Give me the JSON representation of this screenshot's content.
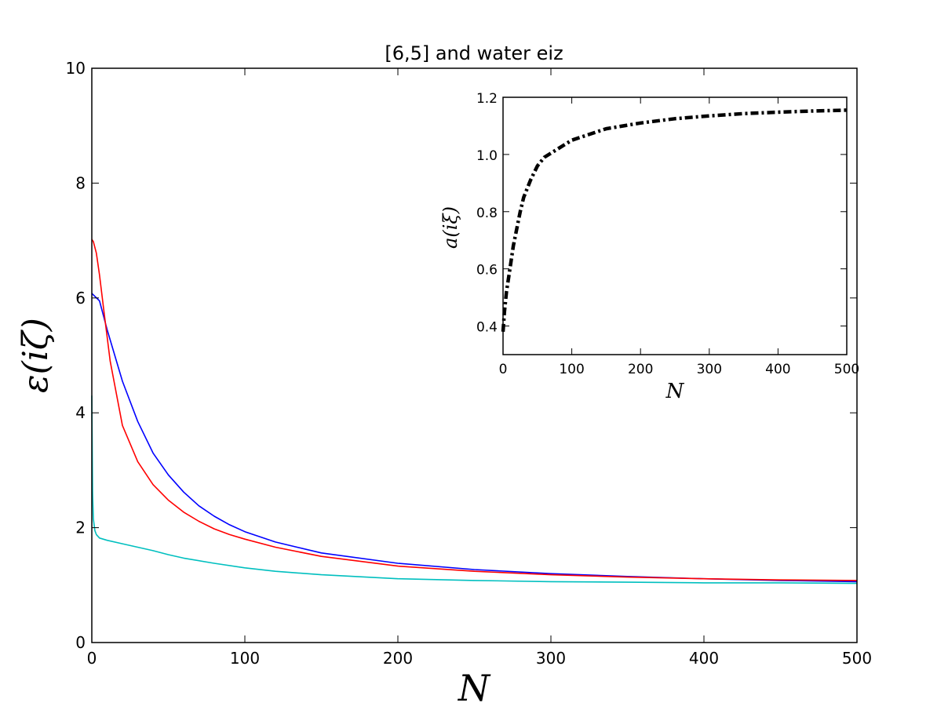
{
  "chart_data": [
    {
      "id": "main",
      "type": "line",
      "title": "[6,5] and water eiz",
      "xlabel": "N",
      "ylabel": "ε(iζ)",
      "xlim": [
        0,
        500
      ],
      "ylim": [
        0,
        10
      ],
      "xticks": [
        0,
        100,
        200,
        300,
        400,
        500
      ],
      "yticks": [
        0,
        2,
        4,
        6,
        8,
        10
      ],
      "grid": false,
      "series": [
        {
          "color": "#0000ff",
          "x": [
            0,
            5,
            10,
            20,
            30,
            40,
            50,
            60,
            70,
            80,
            90,
            100,
            120,
            150,
            200,
            250,
            300,
            350,
            400,
            450,
            500
          ],
          "y": [
            6.08,
            5.95,
            5.45,
            4.55,
            3.85,
            3.3,
            2.92,
            2.62,
            2.38,
            2.2,
            2.05,
            1.93,
            1.75,
            1.56,
            1.38,
            1.27,
            1.2,
            1.15,
            1.11,
            1.08,
            1.06
          ]
        },
        {
          "color": "#ff0000",
          "x": [
            0,
            1,
            3,
            5,
            8,
            12,
            20,
            30,
            40,
            50,
            60,
            70,
            80,
            90,
            100,
            120,
            150,
            200,
            250,
            300,
            350,
            400,
            450,
            500
          ],
          "y": [
            7.02,
            6.98,
            6.78,
            6.4,
            5.75,
            4.9,
            3.78,
            3.15,
            2.75,
            2.48,
            2.27,
            2.11,
            1.98,
            1.88,
            1.8,
            1.66,
            1.5,
            1.33,
            1.24,
            1.18,
            1.14,
            1.11,
            1.09,
            1.08
          ]
        },
        {
          "color": "#00bfbf",
          "x": [
            0,
            0.5,
            1,
            2,
            3,
            5,
            10,
            20,
            30,
            40,
            50,
            60,
            80,
            100,
            120,
            150,
            200,
            250,
            300,
            350,
            400,
            450,
            500
          ],
          "y": [
            4.3,
            2.6,
            2.15,
            1.95,
            1.88,
            1.82,
            1.78,
            1.72,
            1.66,
            1.6,
            1.53,
            1.47,
            1.38,
            1.3,
            1.24,
            1.18,
            1.11,
            1.08,
            1.06,
            1.05,
            1.04,
            1.04,
            1.03
          ]
        }
      ]
    },
    {
      "id": "inset",
      "type": "line",
      "xlabel": "N",
      "ylabel": "a(iξ)",
      "xlim": [
        0,
        500
      ],
      "ylim": [
        0.3,
        1.2
      ],
      "xticks": [
        0,
        100,
        200,
        300,
        400,
        500
      ],
      "yticks": [
        0.4,
        0.6,
        0.8,
        1.0,
        1.2
      ],
      "ytick_labels": [
        "0.4",
        "0.6",
        "0.8",
        "1.0",
        "1.2"
      ],
      "grid": false,
      "series": [
        {
          "color": "#000000",
          "line_style": "dash-dot",
          "x": [
            0,
            2,
            5,
            10,
            15,
            20,
            25,
            30,
            40,
            50,
            60,
            80,
            100,
            150,
            200,
            250,
            300,
            350,
            400,
            450,
            500
          ],
          "y": [
            0.38,
            0.45,
            0.52,
            0.6,
            0.68,
            0.74,
            0.8,
            0.85,
            0.91,
            0.96,
            0.99,
            1.02,
            1.05,
            1.09,
            1.11,
            1.125,
            1.135,
            1.143,
            1.148,
            1.152,
            1.155
          ]
        }
      ]
    }
  ]
}
